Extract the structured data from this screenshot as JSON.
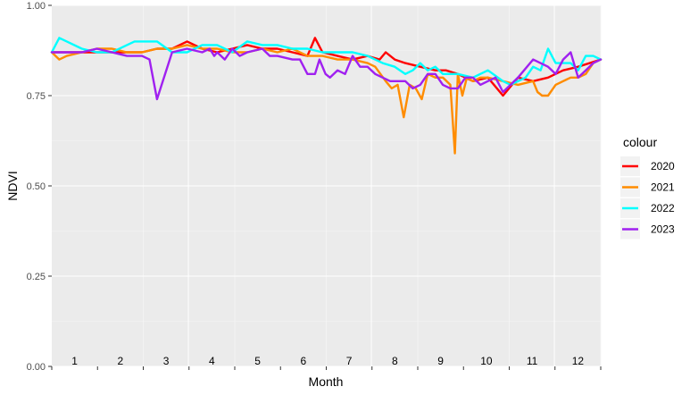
{
  "chart_data": {
    "type": "line",
    "title": "",
    "xlabel": "Month",
    "ylabel": "NDVI",
    "ylim": [
      0,
      1
    ],
    "xlim": [
      0,
      365
    ],
    "y_ticks": [
      "0.00",
      "0.25",
      "0.50",
      "0.75",
      "1.00"
    ],
    "y_tick_values": [
      0,
      0.25,
      0.5,
      0.75,
      1.0
    ],
    "month_labels": [
      "1",
      "2",
      "3",
      "4",
      "5",
      "6",
      "7",
      "8",
      "9",
      "10",
      "11",
      "12"
    ],
    "grid": true,
    "legend": {
      "title": "colour",
      "placement": "right"
    },
    "colors": {
      "panel_bg": "#EBEBEB",
      "grid_major": "#FFFFFF",
      "grid_minor": "#F5F5F5"
    },
    "series": [
      {
        "name": "2020",
        "color": "#FF0000",
        "x": [
          0,
          20,
          40,
          60,
          70,
          80,
          90,
          100,
          110,
          120,
          130,
          140,
          150,
          160,
          170,
          175,
          180,
          190,
          200,
          210,
          218,
          222,
          228,
          235,
          245,
          255,
          262,
          270,
          280,
          290,
          300,
          310,
          320,
          330,
          340,
          350,
          365
        ],
        "values": [
          0.87,
          0.87,
          0.87,
          0.87,
          0.88,
          0.88,
          0.9,
          0.88,
          0.87,
          0.88,
          0.89,
          0.88,
          0.88,
          0.87,
          0.86,
          0.91,
          0.87,
          0.86,
          0.85,
          0.86,
          0.85,
          0.87,
          0.85,
          0.84,
          0.83,
          0.82,
          0.82,
          0.81,
          0.79,
          0.8,
          0.75,
          0.8,
          0.79,
          0.8,
          0.82,
          0.83,
          0.85
        ]
      },
      {
        "name": "2021",
        "color": "#FF8C00",
        "x": [
          0,
          5,
          10,
          20,
          30,
          40,
          50,
          60,
          70,
          80,
          90,
          100,
          110,
          120,
          130,
          140,
          150,
          160,
          170,
          180,
          190,
          200,
          210,
          215,
          222,
          226,
          230,
          234,
          238,
          242,
          246,
          250,
          255,
          260,
          265,
          268,
          270,
          273,
          276,
          280,
          285,
          290,
          300,
          310,
          320,
          323,
          326,
          330,
          335,
          340,
          345,
          350,
          355,
          360,
          365
        ],
        "values": [
          0.87,
          0.85,
          0.86,
          0.87,
          0.88,
          0.88,
          0.87,
          0.87,
          0.88,
          0.88,
          0.89,
          0.88,
          0.88,
          0.87,
          0.87,
          0.88,
          0.87,
          0.88,
          0.86,
          0.86,
          0.85,
          0.85,
          0.84,
          0.83,
          0.79,
          0.77,
          0.78,
          0.69,
          0.78,
          0.77,
          0.74,
          0.81,
          0.8,
          0.8,
          0.78,
          0.59,
          0.81,
          0.75,
          0.8,
          0.79,
          0.8,
          0.8,
          0.79,
          0.78,
          0.79,
          0.76,
          0.75,
          0.75,
          0.78,
          0.79,
          0.8,
          0.8,
          0.81,
          0.84,
          0.85
        ]
      },
      {
        "name": "2022",
        "color": "#00FFFF",
        "x": [
          0,
          5,
          10,
          20,
          30,
          40,
          50,
          55,
          60,
          70,
          80,
          90,
          100,
          110,
          120,
          130,
          140,
          150,
          160,
          170,
          180,
          190,
          200,
          210,
          220,
          228,
          235,
          240,
          245,
          250,
          255,
          260,
          270,
          280,
          290,
          300,
          305,
          310,
          315,
          320,
          325,
          330,
          335,
          340,
          345,
          350,
          355,
          360,
          365
        ],
        "values": [
          0.87,
          0.91,
          0.9,
          0.88,
          0.87,
          0.87,
          0.89,
          0.9,
          0.9,
          0.9,
          0.87,
          0.87,
          0.89,
          0.89,
          0.87,
          0.9,
          0.89,
          0.89,
          0.88,
          0.88,
          0.87,
          0.87,
          0.87,
          0.86,
          0.84,
          0.83,
          0.81,
          0.82,
          0.84,
          0.82,
          0.83,
          0.81,
          0.81,
          0.8,
          0.82,
          0.79,
          0.78,
          0.79,
          0.8,
          0.83,
          0.82,
          0.88,
          0.84,
          0.84,
          0.84,
          0.82,
          0.86,
          0.86,
          0.85
        ]
      },
      {
        "name": "2023",
        "color": "#A020F0",
        "x": [
          0,
          20,
          30,
          40,
          50,
          60,
          65,
          70,
          80,
          90,
          100,
          105,
          108,
          110,
          115,
          120,
          125,
          130,
          140,
          145,
          150,
          160,
          165,
          170,
          175,
          178,
          182,
          185,
          190,
          195,
          200,
          205,
          210,
          215,
          220,
          225,
          230,
          235,
          240,
          245,
          250,
          255,
          260,
          265,
          270,
          275,
          280,
          285,
          290,
          295,
          300,
          310,
          320,
          330,
          335,
          340,
          345,
          350,
          355,
          360,
          365
        ],
        "values": [
          0.87,
          0.87,
          0.88,
          0.87,
          0.86,
          0.86,
          0.85,
          0.74,
          0.87,
          0.88,
          0.87,
          0.88,
          0.86,
          0.87,
          0.85,
          0.88,
          0.86,
          0.87,
          0.88,
          0.86,
          0.86,
          0.85,
          0.85,
          0.81,
          0.81,
          0.85,
          0.81,
          0.8,
          0.82,
          0.81,
          0.86,
          0.83,
          0.83,
          0.81,
          0.8,
          0.79,
          0.79,
          0.79,
          0.77,
          0.78,
          0.81,
          0.81,
          0.78,
          0.77,
          0.77,
          0.8,
          0.8,
          0.78,
          0.79,
          0.8,
          0.76,
          0.8,
          0.85,
          0.83,
          0.81,
          0.85,
          0.87,
          0.8,
          0.82,
          0.84,
          0.85
        ]
      }
    ]
  }
}
